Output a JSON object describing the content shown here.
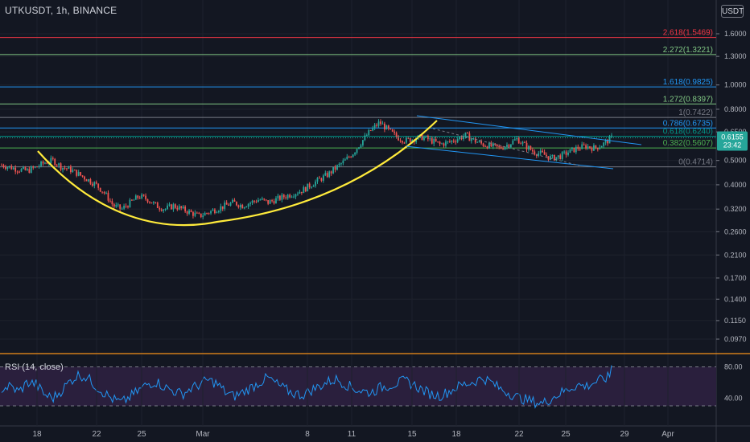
{
  "header": {
    "symbol": "UTKUSDT, 1h, BINANCE",
    "currency_button": "USDT"
  },
  "price_badge": {
    "price": "0.6155",
    "countdown": "23:42"
  },
  "rsi_title": "RSI (14, close)",
  "colors": {
    "background": "#131722",
    "grid": "#1e222d",
    "candle_up": "#26a69a",
    "candle_down": "#ef5350",
    "cup_curve": "#ffeb3b",
    "channel": "#2196f3",
    "rsi_line": "#2196f3",
    "rsi_band": "#2a1f3d",
    "pane_border": "#f7931a"
  },
  "chart_data": [
    {
      "type": "candlestick",
      "title": "UTKUSDT, 1h, BINANCE",
      "y_scale": "log",
      "y_ticks": [
        "1.6000",
        "1.3000",
        "1.0000",
        "0.8000",
        "0.6500",
        "0.5000",
        "0.4000",
        "0.3200",
        "0.2600",
        "0.2100",
        "0.1700",
        "0.1400",
        "0.1150",
        "0.0970"
      ],
      "x_ticks": [
        "18",
        "22",
        "25",
        "Mar",
        "8",
        "11",
        "15",
        "18",
        "22",
        "25",
        "29",
        "Apr"
      ],
      "close_series": [
        0.48,
        0.47,
        0.46,
        0.455,
        0.47,
        0.49,
        0.5,
        0.47,
        0.46,
        0.44,
        0.42,
        0.4,
        0.37,
        0.33,
        0.32,
        0.34,
        0.36,
        0.35,
        0.33,
        0.32,
        0.33,
        0.32,
        0.31,
        0.3,
        0.31,
        0.32,
        0.33,
        0.34,
        0.33,
        0.34,
        0.35,
        0.34,
        0.35,
        0.36,
        0.37,
        0.38,
        0.4,
        0.42,
        0.44,
        0.47,
        0.5,
        0.54,
        0.6,
        0.66,
        0.71,
        0.66,
        0.62,
        0.6,
        0.61,
        0.62,
        0.6,
        0.58,
        0.59,
        0.61,
        0.63,
        0.6,
        0.58,
        0.57,
        0.56,
        0.58,
        0.61,
        0.57,
        0.54,
        0.53,
        0.51,
        0.52,
        0.54,
        0.56,
        0.57,
        0.56,
        0.58,
        0.6155
      ],
      "fibonacci_levels": [
        {
          "label": "0(0.4714)",
          "value": 0.4714,
          "color": "#787b86"
        },
        {
          "label": "0.382(0.5607)",
          "value": 0.5607,
          "color": "#4caf50"
        },
        {
          "label": "0.618(0.6240)",
          "value": 0.624,
          "color": "#009688"
        },
        {
          "label": "0.786(0.6735)",
          "value": 0.6735,
          "color": "#2196f3"
        },
        {
          "label": "1(0.7422)",
          "value": 0.7422,
          "color": "#787b86"
        },
        {
          "label": "1.272(0.8397)",
          "value": 0.8397,
          "color": "#81c784"
        },
        {
          "label": "1.618(0.9825)",
          "value": 0.9825,
          "color": "#2196f3"
        },
        {
          "label": "2.272(1.3221)",
          "value": 1.3221,
          "color": "#81c784"
        },
        {
          "label": "2.618(1.5469)",
          "value": 1.5469,
          "color": "#f23645"
        }
      ],
      "last_price": 0.6155,
      "annotations": [
        "cup curve",
        "descending channel"
      ]
    },
    {
      "type": "line",
      "title": "RSI (14, close)",
      "y_ticks": [
        "80.00",
        "40.00"
      ],
      "bands": [
        80,
        30
      ],
      "values": [
        52,
        55,
        48,
        60,
        58,
        44,
        40,
        50,
        62,
        70,
        66,
        55,
        46,
        38,
        34,
        42,
        50,
        58,
        61,
        54,
        49,
        45,
        52,
        57,
        63,
        59,
        48,
        42,
        47,
        53,
        60,
        66,
        58,
        51,
        46,
        44,
        50,
        55,
        61,
        64,
        58,
        52,
        49,
        47,
        53,
        56,
        59,
        62,
        57,
        50,
        45,
        43,
        48,
        54,
        58,
        61,
        66,
        60,
        52,
        47,
        41,
        38,
        35,
        33,
        40,
        46,
        52,
        57,
        55,
        60,
        64,
        68
      ]
    }
  ]
}
